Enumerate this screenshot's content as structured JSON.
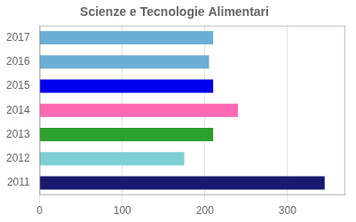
{
  "chart_data": {
    "type": "bar",
    "orientation": "horizontal",
    "title": "Scienze e Tecnologie Alimentari",
    "categories": [
      "2017",
      "2016",
      "2015",
      "2014",
      "2013",
      "2012",
      "2011"
    ],
    "values": [
      210,
      205,
      210,
      240,
      210,
      175,
      345
    ],
    "colors": [
      "#6baed6",
      "#6baed6",
      "#0000ee",
      "#ff69b4",
      "#2ca02c",
      "#7ecfd4",
      "#191970"
    ],
    "xlim": [
      0,
      370
    ],
    "xticks": [
      0,
      100,
      200,
      300
    ],
    "grid": true
  }
}
